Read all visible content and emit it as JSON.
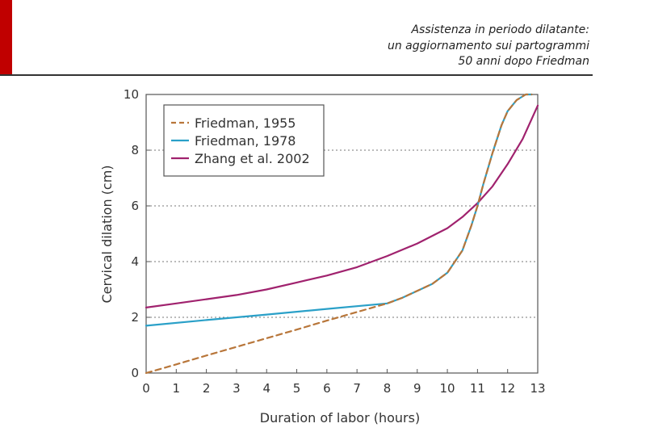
{
  "slide": {
    "title_lines": [
      "Assistenza in periodo dilatante:",
      "un aggiornamento sui partogrammi",
      "50 anni dopo Friedman"
    ]
  },
  "colors": {
    "accent": "#c00000",
    "friedman_1955": "#b8763a",
    "friedman_1978": "#2aa0c8",
    "zhang_2002": "#a0226e"
  },
  "chart_data": {
    "type": "line",
    "xlabel": "Duration of labor (hours)",
    "ylabel": "Cervical dilation (cm)",
    "xlim": [
      0,
      13
    ],
    "ylim": [
      0,
      10
    ],
    "xticks": [
      0,
      1,
      2,
      3,
      4,
      5,
      6,
      7,
      8,
      9,
      10,
      11,
      12,
      13
    ],
    "yticks": [
      0,
      2,
      4,
      6,
      8,
      10
    ],
    "grid": "horizontal dotted",
    "legend": "top-left",
    "series": [
      {
        "name": "Friedman, 1955",
        "style": "dashed",
        "color": "#b8763a",
        "x": [
          0,
          1,
          2,
          3,
          4,
          5,
          6,
          7,
          8,
          8.5,
          9,
          9.5,
          10,
          10.5,
          10.8,
          11,
          11.2,
          11.5,
          11.8,
          12,
          12.3,
          12.6,
          12.8
        ],
        "y": [
          0,
          0.31,
          0.63,
          0.94,
          1.25,
          1.56,
          1.88,
          2.19,
          2.5,
          2.7,
          2.95,
          3.2,
          3.6,
          4.4,
          5.3,
          6.0,
          6.8,
          7.9,
          8.9,
          9.4,
          9.8,
          10.0,
          10.0
        ]
      },
      {
        "name": "Friedman, 1978",
        "style": "solid",
        "color": "#2aa0c8",
        "x": [
          0,
          2,
          4,
          6,
          8,
          8.5,
          9,
          9.5,
          10,
          10.5,
          10.8,
          11,
          11.2,
          11.5,
          11.8,
          12,
          12.3,
          12.6,
          12.8
        ],
        "y": [
          1.7,
          1.9,
          2.1,
          2.3,
          2.5,
          2.7,
          2.95,
          3.2,
          3.6,
          4.4,
          5.3,
          6.0,
          6.8,
          7.9,
          8.9,
          9.4,
          9.8,
          10.0,
          10.0
        ]
      },
      {
        "name": "Zhang et al. 2002",
        "style": "solid",
        "color": "#a0226e",
        "x": [
          0,
          1,
          2,
          3,
          4,
          5,
          6,
          7,
          8,
          9,
          10,
          10.5,
          11,
          11.5,
          12,
          12.5,
          13
        ],
        "y": [
          2.35,
          2.5,
          2.65,
          2.8,
          3.0,
          3.25,
          3.5,
          3.8,
          4.2,
          4.65,
          5.2,
          5.6,
          6.1,
          6.7,
          7.5,
          8.4,
          9.6
        ]
      }
    ]
  }
}
